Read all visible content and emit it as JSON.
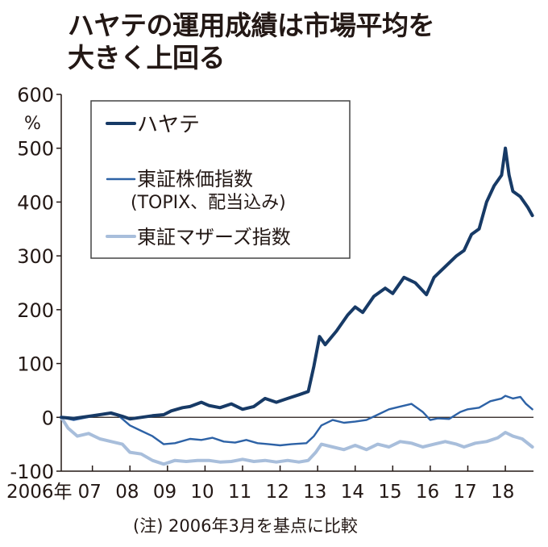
{
  "title_line1": "ハヤテの運用成績は市場平均を",
  "title_line2": "大きく上回る",
  "note": "(注) 2006年3月を基点に比較",
  "colors": {
    "hayate": "#173a66",
    "topix": "#2d62a6",
    "mothers": "#a8bedb",
    "axis": "#231815"
  },
  "chart_data": {
    "type": "line",
    "title": "ハヤテの運用成績は市場平均を大きく上回る",
    "ylabel": "%",
    "ylim": [
      -100,
      600
    ],
    "xlim": [
      2006.17,
      2018.75
    ],
    "yticks": [
      "600",
      "500",
      "400",
      "300",
      "200",
      "100",
      "0",
      "-100"
    ],
    "ytick_values": [
      600,
      500,
      400,
      300,
      200,
      100,
      0,
      -100
    ],
    "xticks": [
      "2006年",
      "07",
      "08",
      "09",
      "10",
      "11",
      "12",
      "13",
      "14",
      "15",
      "16",
      "17",
      "18"
    ],
    "xtick_values": [
      2006.5,
      2007,
      2008,
      2009,
      2010,
      2011,
      2012,
      2013,
      2014,
      2015,
      2016,
      2017,
      2018
    ],
    "legend": [
      "ハヤテ",
      "東証株価指数",
      "(TOPIX、配当込み)",
      "東証マザーズ指数"
    ],
    "series": [
      {
        "name": "ハヤテ",
        "key": "hayate",
        "points": [
          [
            2006.17,
            0
          ],
          [
            2006.5,
            -2
          ],
          [
            2007.0,
            3
          ],
          [
            2007.5,
            8
          ],
          [
            2007.8,
            2
          ],
          [
            2008.0,
            -3
          ],
          [
            2008.3,
            0
          ],
          [
            2008.6,
            3
          ],
          [
            2008.9,
            5
          ],
          [
            2009.1,
            12
          ],
          [
            2009.4,
            18
          ],
          [
            2009.6,
            20
          ],
          [
            2009.9,
            28
          ],
          [
            2010.1,
            22
          ],
          [
            2010.4,
            18
          ],
          [
            2010.7,
            25
          ],
          [
            2011.0,
            15
          ],
          [
            2011.3,
            20
          ],
          [
            2011.6,
            35
          ],
          [
            2011.9,
            28
          ],
          [
            2012.2,
            35
          ],
          [
            2012.5,
            42
          ],
          [
            2012.75,
            48
          ],
          [
            2012.9,
            95
          ],
          [
            2013.05,
            150
          ],
          [
            2013.2,
            135
          ],
          [
            2013.5,
            160
          ],
          [
            2013.8,
            190
          ],
          [
            2014.0,
            205
          ],
          [
            2014.2,
            195
          ],
          [
            2014.5,
            225
          ],
          [
            2014.8,
            240
          ],
          [
            2015.0,
            230
          ],
          [
            2015.3,
            260
          ],
          [
            2015.6,
            250
          ],
          [
            2015.9,
            228
          ],
          [
            2016.1,
            260
          ],
          [
            2016.4,
            280
          ],
          [
            2016.7,
            300
          ],
          [
            2016.9,
            310
          ],
          [
            2017.1,
            340
          ],
          [
            2017.3,
            350
          ],
          [
            2017.5,
            400
          ],
          [
            2017.7,
            430
          ],
          [
            2017.9,
            450
          ],
          [
            2018.0,
            500
          ],
          [
            2018.1,
            450
          ],
          [
            2018.2,
            420
          ],
          [
            2018.4,
            410
          ],
          [
            2018.6,
            390
          ],
          [
            2018.72,
            375
          ]
        ]
      },
      {
        "name": "東証株価指数(TOPIX、配当込み)",
        "key": "topix",
        "points": [
          [
            2006.17,
            0
          ],
          [
            2006.5,
            -5
          ],
          [
            2007.0,
            2
          ],
          [
            2007.4,
            8
          ],
          [
            2007.7,
            3
          ],
          [
            2008.0,
            -15
          ],
          [
            2008.3,
            -25
          ],
          [
            2008.6,
            -35
          ],
          [
            2008.9,
            -50
          ],
          [
            2009.2,
            -48
          ],
          [
            2009.6,
            -40
          ],
          [
            2009.9,
            -42
          ],
          [
            2010.2,
            -38
          ],
          [
            2010.5,
            -45
          ],
          [
            2010.8,
            -47
          ],
          [
            2011.1,
            -42
          ],
          [
            2011.4,
            -48
          ],
          [
            2011.7,
            -50
          ],
          [
            2012.0,
            -52
          ],
          [
            2012.3,
            -50
          ],
          [
            2012.7,
            -48
          ],
          [
            2012.9,
            -35
          ],
          [
            2013.1,
            -15
          ],
          [
            2013.4,
            -5
          ],
          [
            2013.7,
            -10
          ],
          [
            2014.0,
            -8
          ],
          [
            2014.3,
            -5
          ],
          [
            2014.6,
            5
          ],
          [
            2014.9,
            15
          ],
          [
            2015.2,
            20
          ],
          [
            2015.5,
            25
          ],
          [
            2015.8,
            10
          ],
          [
            2016.0,
            -5
          ],
          [
            2016.2,
            -2
          ],
          [
            2016.5,
            -3
          ],
          [
            2016.8,
            10
          ],
          [
            2017.0,
            15
          ],
          [
            2017.3,
            18
          ],
          [
            2017.6,
            30
          ],
          [
            2017.9,
            35
          ],
          [
            2018.0,
            40
          ],
          [
            2018.2,
            35
          ],
          [
            2018.4,
            38
          ],
          [
            2018.55,
            25
          ],
          [
            2018.72,
            15
          ]
        ]
      },
      {
        "name": "東証マザーズ指数",
        "key": "mothers",
        "points": [
          [
            2006.17,
            0
          ],
          [
            2006.35,
            -20
          ],
          [
            2006.6,
            -35
          ],
          [
            2006.9,
            -30
          ],
          [
            2007.2,
            -40
          ],
          [
            2007.5,
            -45
          ],
          [
            2007.8,
            -50
          ],
          [
            2008.0,
            -65
          ],
          [
            2008.3,
            -68
          ],
          [
            2008.6,
            -80
          ],
          [
            2008.9,
            -87
          ],
          [
            2009.2,
            -80
          ],
          [
            2009.5,
            -82
          ],
          [
            2009.8,
            -80
          ],
          [
            2010.1,
            -80
          ],
          [
            2010.4,
            -83
          ],
          [
            2010.7,
            -82
          ],
          [
            2011.0,
            -78
          ],
          [
            2011.3,
            -82
          ],
          [
            2011.6,
            -80
          ],
          [
            2011.9,
            -83
          ],
          [
            2012.2,
            -80
          ],
          [
            2012.5,
            -83
          ],
          [
            2012.75,
            -80
          ],
          [
            2012.95,
            -65
          ],
          [
            2013.1,
            -50
          ],
          [
            2013.4,
            -55
          ],
          [
            2013.7,
            -60
          ],
          [
            2014.0,
            -52
          ],
          [
            2014.3,
            -60
          ],
          [
            2014.6,
            -50
          ],
          [
            2014.9,
            -55
          ],
          [
            2015.2,
            -45
          ],
          [
            2015.5,
            -48
          ],
          [
            2015.8,
            -55
          ],
          [
            2016.1,
            -50
          ],
          [
            2016.4,
            -45
          ],
          [
            2016.7,
            -50
          ],
          [
            2016.9,
            -55
          ],
          [
            2017.2,
            -48
          ],
          [
            2017.5,
            -45
          ],
          [
            2017.8,
            -38
          ],
          [
            2018.0,
            -28
          ],
          [
            2018.2,
            -35
          ],
          [
            2018.45,
            -40
          ],
          [
            2018.72,
            -55
          ]
        ]
      }
    ]
  }
}
